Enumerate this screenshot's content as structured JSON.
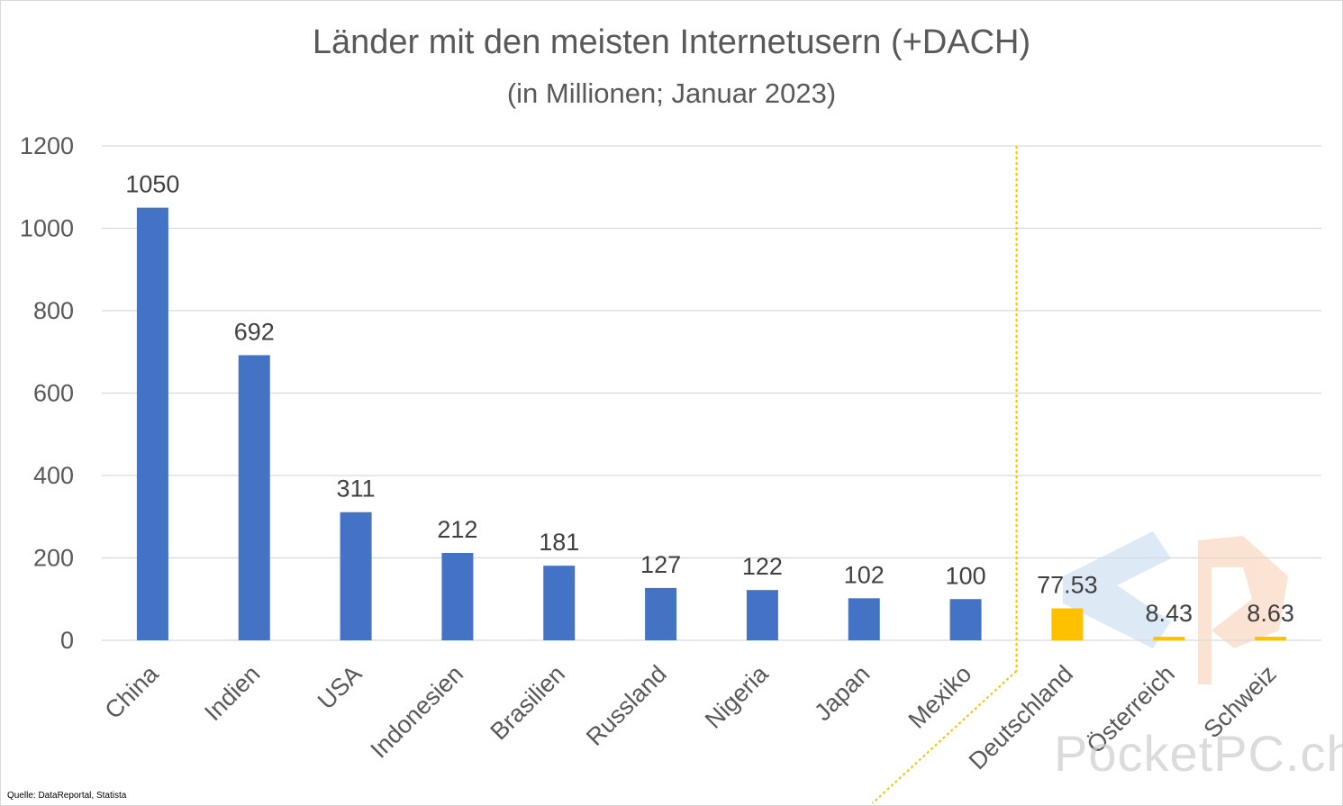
{
  "chart_data": {
    "type": "bar",
    "title": "Länder mit den meisten Internetusern (+DACH)",
    "subtitle": "(in Millionen; Januar 2023)",
    "categories": [
      "China",
      "Indien",
      "USA",
      "Indonesien",
      "Brasilien",
      "Russland",
      "Nigeria",
      "Japan",
      "Mexiko",
      "Deutschland",
      "Österreich",
      "Schweiz"
    ],
    "values": [
      1050,
      692,
      311,
      212,
      181,
      127,
      122,
      102,
      100,
      77.53,
      8.43,
      8.63
    ],
    "data_labels": [
      "1050",
      "692",
      "311",
      "212",
      "181",
      "127",
      "122",
      "102",
      "100",
      "77.53",
      "8.43",
      "8.63"
    ],
    "ylim": [
      0,
      1200
    ],
    "yticks": [
      "0",
      "200",
      "400",
      "600",
      "800",
      "1000",
      "1200"
    ],
    "grid": true,
    "colors": {
      "world": "#4472c4",
      "dach": "#ffc000",
      "separator": "#ffc000"
    },
    "highlighted_group": [
      "Deutschland",
      "Österreich",
      "Schweiz"
    ]
  },
  "source": "Quelle: DataReportal, Statista",
  "watermark": "PocketPC.ch"
}
